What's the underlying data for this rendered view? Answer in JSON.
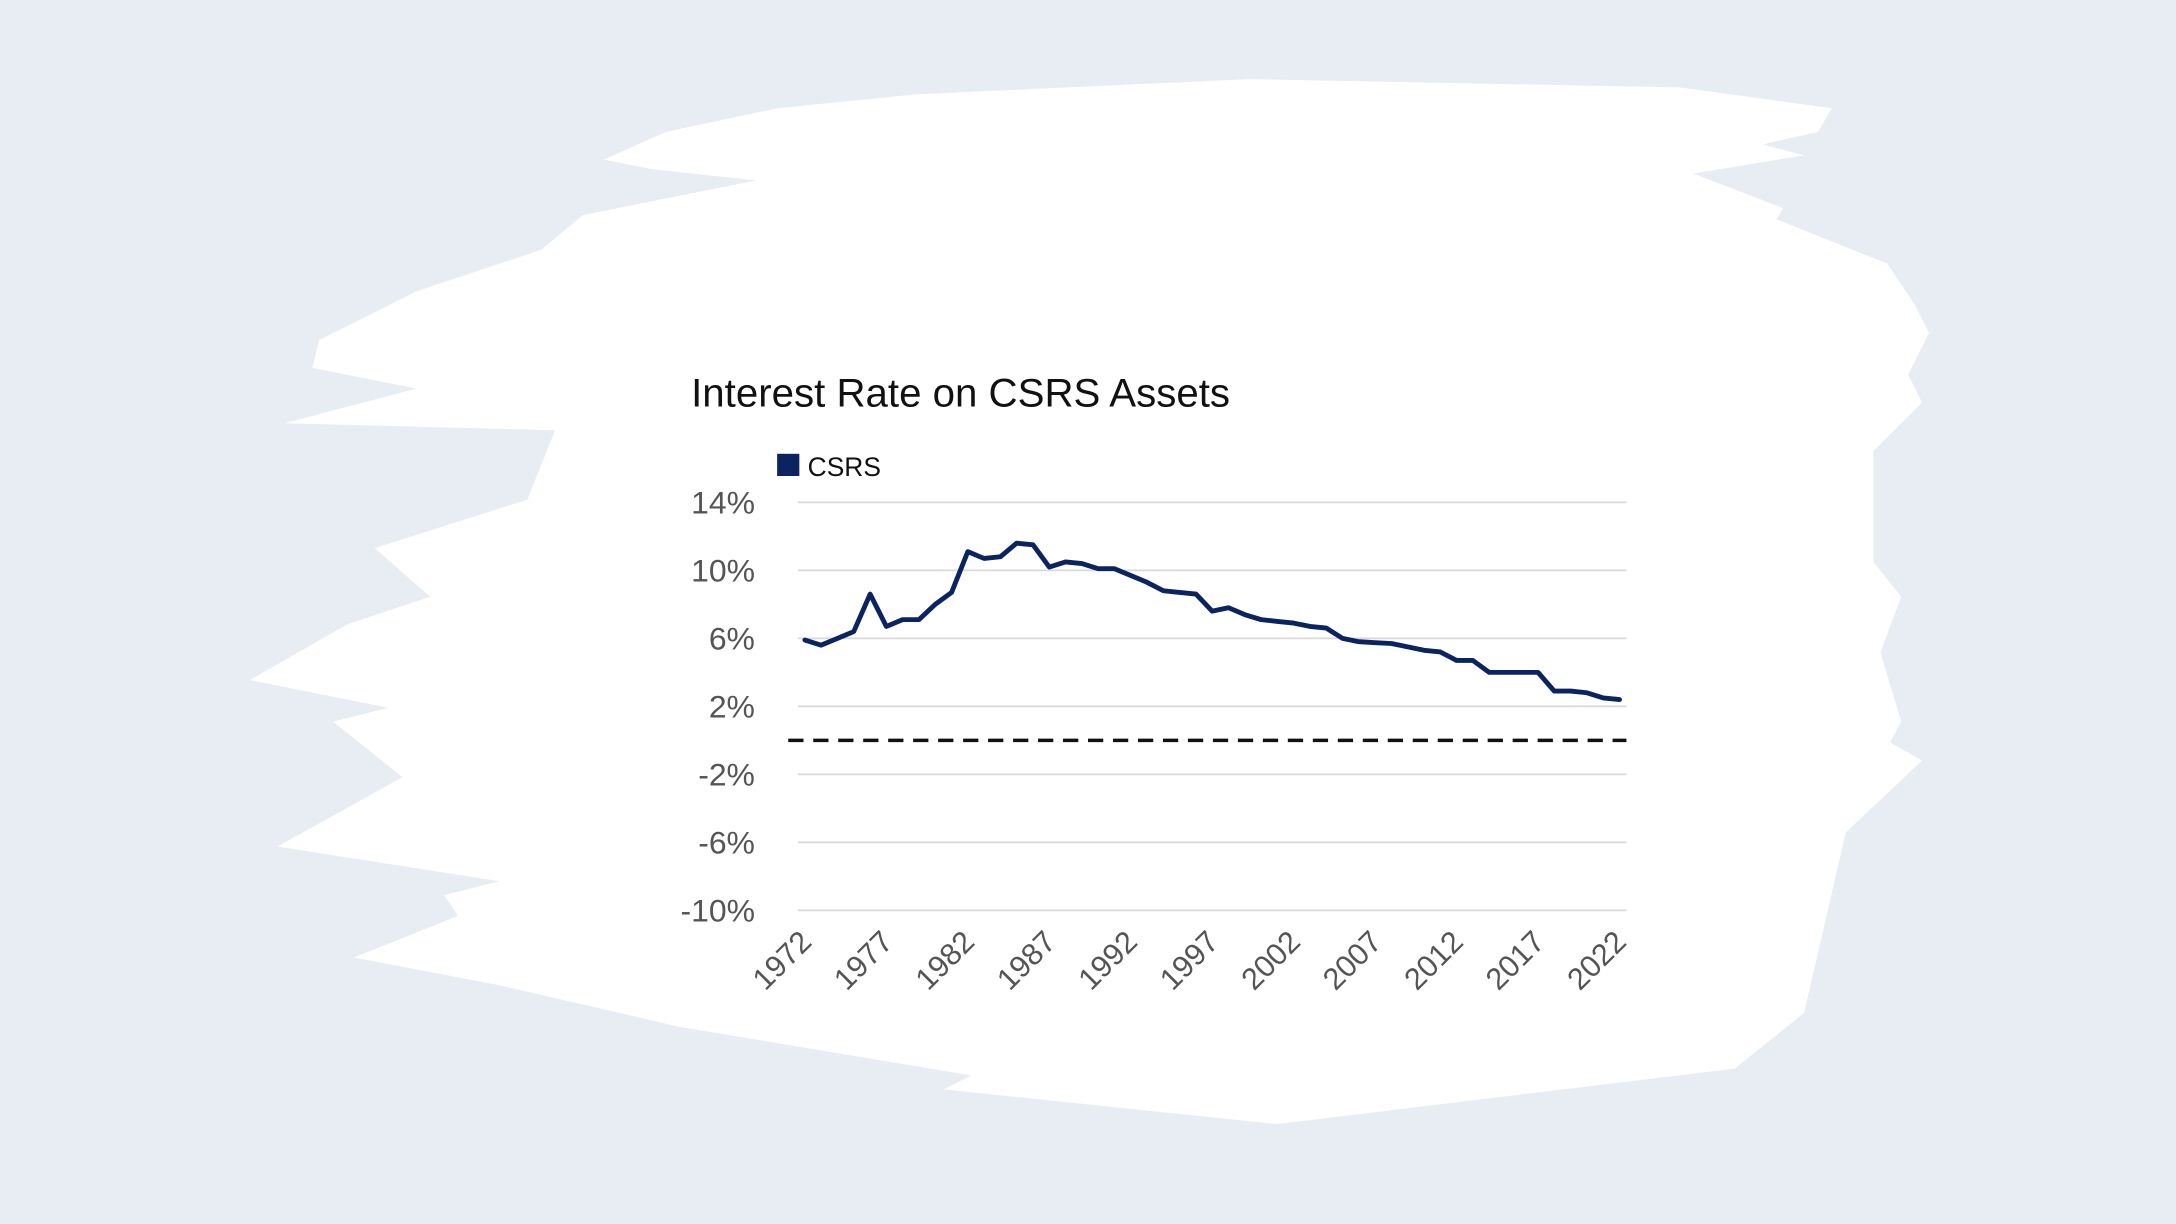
{
  "chart_data": {
    "type": "line",
    "title": "Interest Rate on CSRS Assets",
    "xlabel": "",
    "ylabel": "",
    "ylim": [
      -10,
      14
    ],
    "xlim": [
      1972,
      2022
    ],
    "y_ticks": [
      "14%",
      "10%",
      "6%",
      "2%",
      "-2%",
      "-6%",
      "-10%"
    ],
    "y_tick_values": [
      14,
      10,
      6,
      2,
      -2,
      -6,
      -10
    ],
    "x_ticks": [
      "1972",
      "1977",
      "1982",
      "1987",
      "1992",
      "1997",
      "2002",
      "2007",
      "2012",
      "2017",
      "2022"
    ],
    "grid": true,
    "legend_placement": "top-left",
    "reference_line": {
      "value": 0,
      "style": "dashed"
    },
    "series": [
      {
        "name": "CSRS",
        "color": "#0b2460",
        "x": [
          1972,
          1973,
          1974,
          1975,
          1976,
          1977,
          1978,
          1979,
          1980,
          1981,
          1982,
          1983,
          1984,
          1985,
          1986,
          1987,
          1988,
          1989,
          1990,
          1991,
          1992,
          1993,
          1994,
          1995,
          1996,
          1997,
          1998,
          1999,
          2000,
          2001,
          2002,
          2003,
          2004,
          2005,
          2006,
          2007,
          2008,
          2009,
          2010,
          2011,
          2012,
          2013,
          2014,
          2015,
          2016,
          2017,
          2018,
          2019,
          2020,
          2021,
          2022
        ],
        "values": [
          5.9,
          5.6,
          6.0,
          6.4,
          8.6,
          6.7,
          7.1,
          7.1,
          8.0,
          8.7,
          11.1,
          10.7,
          10.8,
          11.6,
          11.5,
          10.2,
          10.5,
          10.4,
          10.1,
          10.1,
          9.7,
          9.3,
          8.8,
          8.7,
          8.6,
          7.6,
          7.8,
          7.4,
          7.1,
          7.0,
          6.9,
          6.7,
          6.6,
          6.0,
          5.8,
          5.75,
          5.7,
          5.5,
          5.3,
          5.2,
          4.7,
          4.7,
          4.0,
          4.0,
          4.0,
          4.0,
          2.9,
          2.9,
          2.8,
          2.5,
          2.4
        ]
      }
    ]
  },
  "colors": {
    "background": "#e7edf3",
    "panel": "#ffffff",
    "grid": "#d9d9d9",
    "line": "#0b2460"
  }
}
